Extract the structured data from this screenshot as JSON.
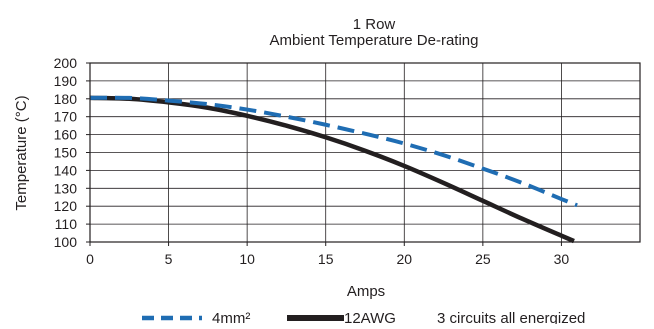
{
  "chart_data": {
    "type": "line",
    "title": "1 Row",
    "subtitle": "Ambient Temperature De-rating",
    "xlabel": "Amps",
    "ylabel": "Temperature (°C)",
    "xlim": [
      0,
      35
    ],
    "ylim": [
      100,
      200
    ],
    "x_ticks": [
      0,
      5,
      10,
      15,
      20,
      25,
      30
    ],
    "y_ticks": [
      100,
      110,
      120,
      130,
      140,
      150,
      160,
      170,
      180,
      190,
      200
    ],
    "grid": true,
    "legend_position": "bottom",
    "series": [
      {
        "name": "4mm²",
        "style": "dashed",
        "color": "#1f6db3",
        "points": [
          [
            0,
            180.5
          ],
          [
            2.5,
            180.5
          ],
          [
            5,
            179
          ],
          [
            7.5,
            177
          ],
          [
            10,
            174
          ],
          [
            12.5,
            170
          ],
          [
            15,
            165.5
          ],
          [
            17.5,
            160.5
          ],
          [
            20,
            155
          ],
          [
            22.5,
            148.5
          ],
          [
            25,
            141
          ],
          [
            27.5,
            133
          ],
          [
            30,
            124
          ],
          [
            31,
            120.5
          ]
        ]
      },
      {
        "name": "12AWG",
        "style": "solid",
        "color": "#231f20",
        "points": [
          [
            0,
            180.5
          ],
          [
            2.5,
            180
          ],
          [
            5,
            178
          ],
          [
            7.5,
            175
          ],
          [
            10,
            170.5
          ],
          [
            12.5,
            165
          ],
          [
            15,
            158.5
          ],
          [
            17.5,
            151
          ],
          [
            20,
            142.5
          ],
          [
            22.5,
            133
          ],
          [
            25,
            123
          ],
          [
            27.5,
            113
          ],
          [
            30,
            103.5
          ],
          [
            30.8,
            100.5
          ]
        ]
      }
    ],
    "annotation": "3 circuits all energized"
  }
}
